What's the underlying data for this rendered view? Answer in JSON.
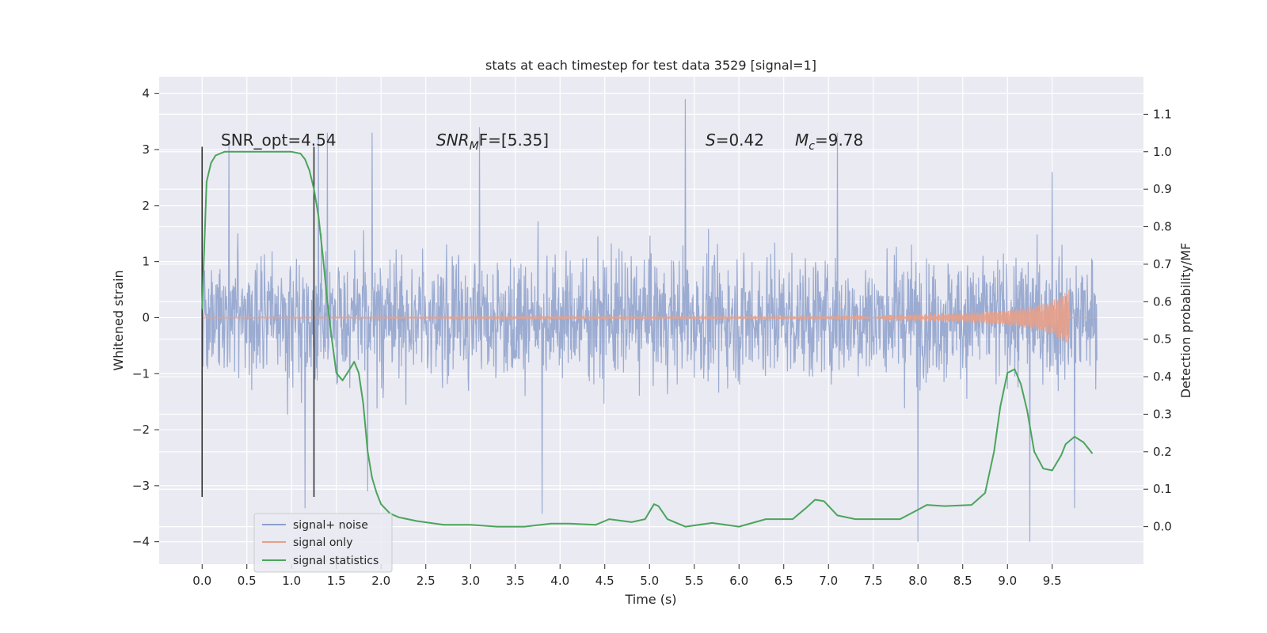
{
  "chart_data": {
    "type": "line",
    "title": "stats at each timestep for test data 3529 [signal=1]",
    "xlabel": "Time (s)",
    "ylabel": "Whitened strain",
    "y2label": "Detection probability/MF",
    "xlim": [
      -0.48,
      10.52
    ],
    "ylim": [
      -4.4,
      4.3
    ],
    "y2lim": [
      -0.1,
      1.2
    ],
    "x_ticks": [
      0.0,
      0.5,
      1.0,
      1.5,
      2.0,
      2.5,
      3.0,
      3.5,
      4.0,
      4.5,
      5.0,
      5.5,
      6.0,
      6.5,
      7.0,
      7.5,
      8.0,
      8.5,
      9.0,
      9.5
    ],
    "y_ticks": [
      -4,
      -3,
      -2,
      -1,
      0,
      1,
      2,
      3,
      4
    ],
    "y2_ticks": [
      0.0,
      0.1,
      0.2,
      0.3,
      0.4,
      0.5,
      0.6,
      0.7,
      0.8,
      0.9,
      1.0,
      1.1
    ],
    "grid": true,
    "legend_position": "bottom-left",
    "annotations": [
      {
        "text": "SNR_opt=4.54",
        "x": 0.2,
        "y": 3.0
      },
      {
        "text_base": "SNR",
        "text_sub": "M",
        "text_rest": "F=[5.35]",
        "x": 2.6,
        "y": 3.0
      },
      {
        "text_base": "S",
        "text_rest": "=0.42",
        "x": 5.6,
        "y": 3.0
      },
      {
        "text_base": "M",
        "text_sub": "c",
        "text_rest": "=9.78",
        "x": 6.6,
        "y": 3.0
      }
    ],
    "vertical_lines": [
      {
        "x": 0.0,
        "ymin": -3.2,
        "ymax": 3.05
      },
      {
        "x": 1.25,
        "ymin": -3.2,
        "ymax": 3.05
      }
    ],
    "series": [
      {
        "name": "signal+ noise",
        "color": "#8da0cb",
        "x_start": 0.0,
        "x_end": 10.0,
        "typical_range": [
          -2.3,
          2.3
        ],
        "peaks_high": [
          [
            0.3,
            3.1
          ],
          [
            1.3,
            3.2
          ],
          [
            1.4,
            3.3
          ],
          [
            1.9,
            3.3
          ],
          [
            3.1,
            3.4
          ],
          [
            5.4,
            3.9
          ],
          [
            7.1,
            3.3
          ],
          [
            9.5,
            2.6
          ]
        ],
        "peaks_low": [
          [
            1.15,
            -3.4
          ],
          [
            1.85,
            -3.1
          ],
          [
            3.8,
            -3.5
          ],
          [
            8.0,
            -4.0
          ],
          [
            9.25,
            -4.0
          ],
          [
            9.75,
            -3.4
          ]
        ]
      },
      {
        "name": "signal only",
        "color": "#e8a088",
        "x": [
          0.0,
          2.0,
          4.0,
          6.0,
          7.0,
          8.0,
          8.5,
          9.0,
          9.3,
          9.5,
          9.65,
          9.69,
          9.7,
          10.0
        ],
        "envelope": [
          0.01,
          0.01,
          0.015,
          0.02,
          0.03,
          0.06,
          0.08,
          0.13,
          0.2,
          0.3,
          0.45,
          0.5,
          0.0,
          0.0
        ]
      },
      {
        "name": "signal statistics",
        "color": "#4aa55b",
        "x": [
          0.0,
          0.05,
          0.1,
          0.15,
          0.25,
          0.4,
          0.6,
          0.8,
          1.0,
          1.1,
          1.15,
          1.2,
          1.25,
          1.3,
          1.35,
          1.4,
          1.45,
          1.5,
          1.57,
          1.65,
          1.7,
          1.75,
          1.8,
          1.85,
          1.9,
          1.95,
          2.0,
          2.1,
          2.2,
          2.4,
          2.7,
          3.0,
          3.3,
          3.6,
          3.9,
          4.1,
          4.4,
          4.55,
          4.8,
          4.95,
          5.05,
          5.1,
          5.2,
          5.4,
          5.7,
          6.0,
          6.3,
          6.6,
          6.75,
          6.85,
          6.95,
          7.1,
          7.3,
          7.6,
          7.8,
          8.0,
          8.1,
          8.3,
          8.6,
          8.75,
          8.85,
          8.92,
          9.0,
          9.08,
          9.15,
          9.22,
          9.3,
          9.4,
          9.5,
          9.6,
          9.65,
          9.75,
          9.85,
          9.95
        ],
        "values": [
          0.58,
          0.92,
          0.97,
          0.99,
          1.0,
          1.0,
          1.0,
          1.0,
          1.0,
          0.995,
          0.98,
          0.95,
          0.9,
          0.83,
          0.72,
          0.6,
          0.5,
          0.41,
          0.39,
          0.42,
          0.44,
          0.41,
          0.33,
          0.2,
          0.13,
          0.09,
          0.06,
          0.035,
          0.025,
          0.015,
          0.005,
          0.005,
          0.0,
          0.0,
          0.008,
          0.008,
          0.005,
          0.02,
          0.012,
          0.02,
          0.06,
          0.055,
          0.02,
          0.0,
          0.01,
          0.0,
          0.02,
          0.02,
          0.05,
          0.072,
          0.068,
          0.03,
          0.02,
          0.02,
          0.02,
          0.045,
          0.058,
          0.055,
          0.058,
          0.09,
          0.2,
          0.32,
          0.41,
          0.42,
          0.38,
          0.31,
          0.2,
          0.155,
          0.15,
          0.19,
          0.22,
          0.24,
          0.225,
          0.195
        ]
      }
    ]
  }
}
